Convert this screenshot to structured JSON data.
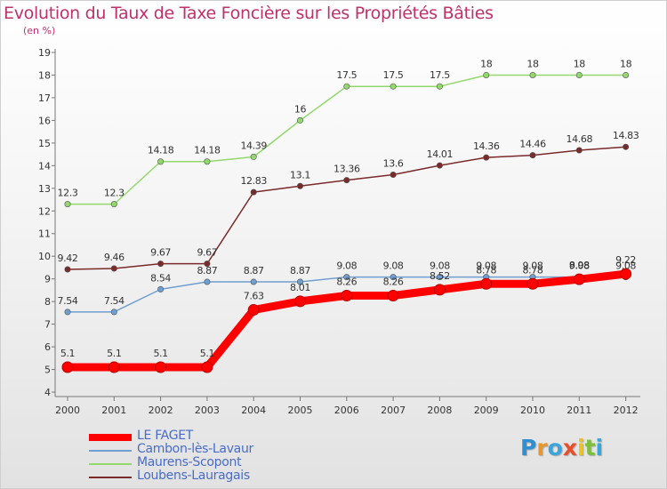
{
  "chart_data": {
    "type": "line",
    "title": "Evolution du Taux de Taxe Foncière sur les Propriétés Bâties",
    "ylabel": "(en %)",
    "xlabel": "",
    "categories": [
      "2000",
      "2001",
      "2002",
      "2003",
      "2004",
      "2005",
      "2006",
      "2007",
      "2008",
      "2009",
      "2010",
      "2011",
      "2012"
    ],
    "yticks": [
      "4",
      "5",
      "6",
      "7",
      "8",
      "9",
      "10",
      "11",
      "12",
      "13",
      "14",
      "15",
      "16",
      "17",
      "18",
      "19"
    ],
    "ylim": [
      4,
      19
    ],
    "grid": false,
    "legend_position": "bottom-left",
    "series": [
      {
        "name": "LE FAGET",
        "color": "#ff0000",
        "values": [
          5.1,
          5.1,
          5.1,
          5.1,
          7.63,
          8.01,
          8.26,
          8.26,
          8.52,
          8.78,
          8.78,
          8.98,
          9.22
        ],
        "labels": [
          "5.1",
          "5.1",
          "5.1",
          "5.1",
          "7.63",
          "8.01",
          "8.26",
          "8.26",
          "8.52",
          "8.78",
          "8.78",
          "8.98",
          "9.22"
        ]
      },
      {
        "name": "Cambon-lès-Lavaur",
        "color": "#6f9fd0",
        "values": [
          7.54,
          7.54,
          8.54,
          8.87,
          8.87,
          8.87,
          9.08,
          9.08,
          9.08,
          9.08,
          9.08,
          9.08,
          9.08
        ],
        "labels": [
          "7.54",
          "7.54",
          "8.54",
          "8.87",
          "8.87",
          "8.87",
          "9.08",
          "9.08",
          "9.08",
          "9.08",
          "9.08",
          "9.08",
          "9.08"
        ]
      },
      {
        "name": "Maurens-Scopont",
        "color": "#92d86a",
        "values": [
          12.3,
          12.3,
          14.18,
          14.18,
          14.39,
          16,
          17.5,
          17.5,
          17.5,
          18,
          18,
          18,
          18
        ],
        "labels": [
          "12.3",
          "12.3",
          "14.18",
          "14.18",
          "14.39",
          "16",
          "17.5",
          "17.5",
          "17.5",
          "18",
          "18",
          "18",
          "18"
        ]
      },
      {
        "name": "Loubens-Lauragais",
        "color": "#7a2a2a",
        "values": [
          9.42,
          9.46,
          9.67,
          9.67,
          12.83,
          13.1,
          13.36,
          13.6,
          14.01,
          14.36,
          14.46,
          14.68,
          14.83
        ],
        "labels": [
          "9.42",
          "9.46",
          "9.67",
          "9.67",
          "12.83",
          "13.1",
          "13.36",
          "13.6",
          "14.01",
          "14.36",
          "14.46",
          "14.68",
          "14.83"
        ]
      }
    ]
  },
  "logo": {
    "letters": [
      "P",
      "r",
      "o",
      "x",
      "i",
      "t",
      "i"
    ],
    "colors": [
      "#2f8fd6",
      "#e8962a",
      "#3aa4dc",
      "#e8502a",
      "#f0c21e",
      "#7bbf3a",
      "#39a8d8"
    ]
  }
}
